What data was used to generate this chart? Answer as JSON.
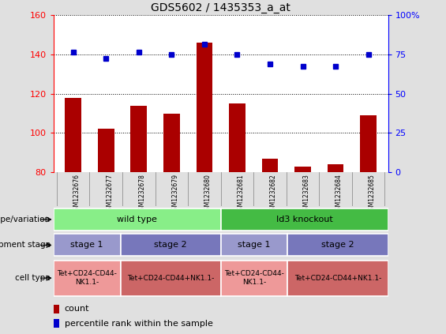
{
  "title": "GDS5602 / 1435353_a_at",
  "samples": [
    "GSM1232676",
    "GSM1232677",
    "GSM1232678",
    "GSM1232679",
    "GSM1232680",
    "GSM1232681",
    "GSM1232682",
    "GSM1232683",
    "GSM1232684",
    "GSM1232685"
  ],
  "bar_values": [
    118,
    102,
    114,
    110,
    146,
    115,
    87,
    83,
    84,
    109
  ],
  "dot_values": [
    141,
    138,
    141,
    140,
    145,
    140,
    135,
    134,
    134,
    140
  ],
  "ylim_left": [
    80,
    160
  ],
  "ylim_right": [
    0,
    100
  ],
  "yticks_left": [
    80,
    100,
    120,
    140,
    160
  ],
  "yticks_right": [
    0,
    25,
    50,
    75,
    100
  ],
  "bar_color": "#aa0000",
  "dot_color": "#0000cc",
  "bg_color": "#e0e0e0",
  "plot_bg": "#ffffff",
  "genotype_groups": [
    {
      "text": "wild type",
      "span": [
        0,
        4
      ],
      "color": "#88ee88"
    },
    {
      "text": "Id3 knockout",
      "span": [
        5,
        9
      ],
      "color": "#44bb44"
    }
  ],
  "stage_groups": [
    {
      "text": "stage 1",
      "span": [
        0,
        1
      ],
      "color": "#9999cc"
    },
    {
      "text": "stage 2",
      "span": [
        2,
        4
      ],
      "color": "#7777bb"
    },
    {
      "text": "stage 1",
      "span": [
        5,
        6
      ],
      "color": "#9999cc"
    },
    {
      "text": "stage 2",
      "span": [
        7,
        9
      ],
      "color": "#7777bb"
    }
  ],
  "cell_groups": [
    {
      "text": "Tet+CD24-CD44-\nNK1.1-",
      "span": [
        0,
        1
      ],
      "color": "#ee9999"
    },
    {
      "text": "Tet+CD24-CD44+NK1.1-",
      "span": [
        2,
        4
      ],
      "color": "#cc6666"
    },
    {
      "text": "Tet+CD24-CD44-\nNK1.1-",
      "span": [
        5,
        6
      ],
      "color": "#ee9999"
    },
    {
      "text": "Tet+CD24-CD44+NK1.1-",
      "span": [
        7,
        9
      ],
      "color": "#cc6666"
    }
  ],
  "genotype_label": "genotype/variation",
  "stage_label": "development stage",
  "cell_label": "cell type",
  "legend_count_label": "count",
  "legend_pct_label": "percentile rank within the sample",
  "figsize": [
    5.65,
    4.23
  ],
  "dpi": 100
}
